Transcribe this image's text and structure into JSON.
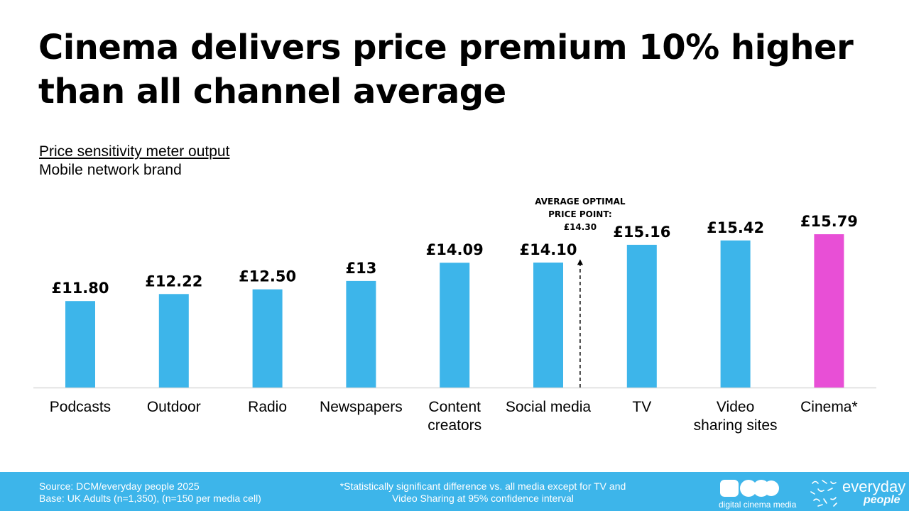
{
  "title": "Cinema delivers price premium 10% higher than all channel average",
  "subtitle": {
    "line1": "Price sensitivity meter output",
    "line2": "Mobile network brand"
  },
  "chart_data": {
    "type": "bar",
    "categories": [
      [
        "Podcasts"
      ],
      [
        "Outdoor"
      ],
      [
        "Radio"
      ],
      [
        "Newspapers"
      ],
      [
        "Content",
        "creators"
      ],
      [
        "Social media"
      ],
      [
        "TV"
      ],
      [
        "Video",
        "sharing sites"
      ],
      [
        "Cinema*"
      ]
    ],
    "values": [
      11.8,
      12.22,
      12.5,
      13,
      14.09,
      14.1,
      15.16,
      15.42,
      15.79
    ],
    "value_labels": [
      "£11.80",
      "£12.22",
      "£12.50",
      "£13",
      "£14.09",
      "£14.10",
      "£15.16",
      "£15.42",
      "£15.79"
    ],
    "colors": [
      "#3db5ea",
      "#3db5ea",
      "#3db5ea",
      "#3db5ea",
      "#3db5ea",
      "#3db5ea",
      "#3db5ea",
      "#3db5ea",
      "#e84fd6"
    ],
    "ylim": [
      0,
      16
    ],
    "grid": false,
    "reference_line": {
      "value": 14.3,
      "label_lines": [
        "AVERAGE OPTIMAL",
        "PRICE POINT:",
        "£14.30"
      ],
      "style": "dashed-arrow"
    }
  },
  "footer": {
    "source": "Source: DCM/everyday people 2025",
    "base": "Base: UK Adults (n=1,350), (n=150 per media cell)",
    "note_line1": "*Statistically significant difference vs. all media except for TV and",
    "note_line2": "Video Sharing at 95% confidence interval",
    "logo_dcm_text": "digital cinema media",
    "logo_ep_word1": "everyday",
    "logo_ep_word2": "people",
    "bg_color": "#3db5ea"
  }
}
